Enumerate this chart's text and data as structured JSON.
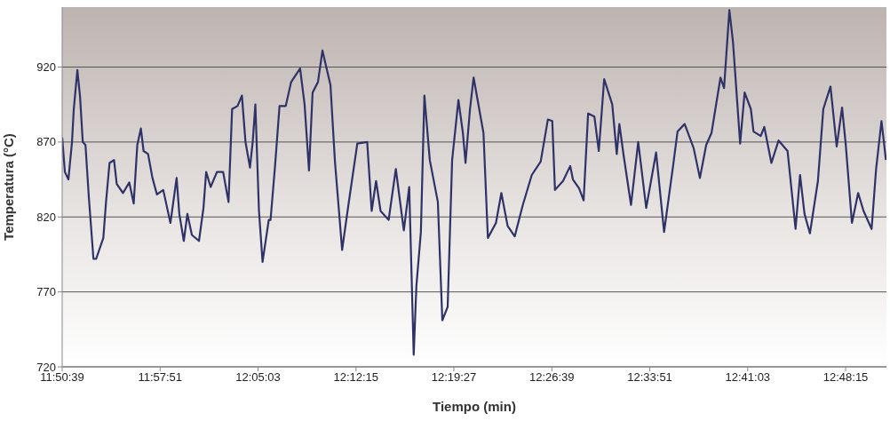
{
  "chart_data": {
    "type": "line",
    "xlabel": "Tiempo (min)",
    "ylabel": "Temperatura (°C)",
    "xlim": [
      11.844167,
      12.854167
    ],
    "xticks": [
      {
        "value": 11.844167,
        "label": "11:50:39"
      },
      {
        "value": 11.964167,
        "label": "11:57:51"
      },
      {
        "value": 12.084167,
        "label": "12:05:03"
      },
      {
        "value": 12.204167,
        "label": "12:12:15"
      },
      {
        "value": 12.324167,
        "label": "12:19:27"
      },
      {
        "value": 12.444167,
        "label": "12:26:39"
      },
      {
        "value": 12.564167,
        "label": "12:33:51"
      },
      {
        "value": 12.684167,
        "label": "12:41:03"
      },
      {
        "value": 12.804167,
        "label": "12:48:15"
      }
    ],
    "ylim": [
      720,
      960
    ],
    "yticks": [
      720,
      770,
      820,
      870,
      920
    ],
    "grid": "y",
    "legend": false,
    "marker": "none",
    "line_style": "solid",
    "x": [
      11.8442,
      11.8475,
      11.8518,
      11.8562,
      11.8584,
      11.8628,
      11.8661,
      11.8694,
      11.8727,
      11.877,
      11.8825,
      11.8858,
      11.8946,
      11.8979,
      11.9022,
      11.9077,
      11.911,
      11.9187,
      11.9264,
      11.9318,
      11.9362,
      11.9406,
      11.9439,
      11.9494,
      11.9548,
      11.9603,
      11.968,
      11.9768,
      11.9844,
      11.9877,
      11.9932,
      11.9976,
      12.0031,
      12.0118,
      12.0173,
      12.0206,
      12.0261,
      12.0338,
      12.0414,
      12.048,
      12.0524,
      12.059,
      12.0644,
      12.0688,
      12.0743,
      12.0776,
      12.0809,
      12.0853,
      12.0897,
      12.0973,
      12.0995,
      12.105,
      12.1105,
      12.1181,
      12.1247,
      12.1357,
      12.1412,
      12.1466,
      12.151,
      12.1576,
      12.1631,
      12.1729,
      12.1784,
      12.1872,
      12.1949,
      12.2058,
      12.2179,
      12.2234,
      12.2288,
      12.2343,
      12.2442,
      12.253,
      12.2628,
      12.2694,
      12.2749,
      12.2782,
      12.2837,
      12.288,
      12.2946,
      12.3045,
      12.31,
      12.3165,
      12.322,
      12.3297,
      12.3352,
      12.3384,
      12.3439,
      12.3483,
      12.3516,
      12.3604,
      12.3658,
      12.3757,
      12.3823,
      12.39,
      12.3987,
      12.4086,
      12.4196,
      12.4305,
      12.4393,
      12.4447,
      12.448,
      12.4579,
      12.4667,
      12.47,
      12.4776,
      12.4831,
      12.4886,
      12.4963,
      12.5017,
      12.5083,
      12.5182,
      12.5237,
      12.5269,
      12.5324,
      12.5412,
      12.55,
      12.5598,
      12.5719,
      12.5817,
      12.5927,
      12.5982,
      12.6069,
      12.6179,
      12.6256,
      12.6333,
      12.6398,
      12.6508,
      12.6552,
      12.6617,
      12.6661,
      12.6749,
      12.6804,
      12.688,
      12.6913,
      12.7001,
      12.7045,
      12.7132,
      12.722,
      12.733,
      12.7428,
      12.7483,
      12.7538,
      12.7604,
      12.7702,
      12.7768,
      12.7856,
      12.7932,
      12.7998,
      12.8042,
      12.8119,
      12.8195,
      12.8261,
      12.836,
      12.8415,
      12.8481,
      12.8535
    ],
    "series": [
      {
        "color": "#2e3266",
        "values": [
          873,
          850,
          845,
          870,
          892,
          918,
          900,
          870,
          868,
          832,
          792,
          792,
          806,
          830,
          856,
          858,
          842,
          836,
          843,
          829,
          868,
          879,
          864,
          862,
          846,
          835,
          838,
          816,
          846,
          822,
          804,
          822,
          808,
          804,
          826,
          850,
          840,
          850,
          850,
          830,
          892,
          894,
          901,
          870,
          853,
          870,
          895,
          824,
          790,
          818,
          818,
          854,
          894,
          894,
          910,
          919,
          895,
          851,
          903,
          910,
          931,
          908,
          857,
          798,
          828,
          869,
          870,
          824,
          844,
          824,
          818,
          852,
          811,
          840,
          728,
          774,
          810,
          901,
          858,
          830,
          751,
          760,
          858,
          898,
          876,
          856,
          892,
          913,
          903,
          876,
          806,
          816,
          836,
          814,
          807,
          828,
          848,
          857,
          885,
          884,
          838,
          844,
          854,
          845,
          839,
          831,
          889,
          887,
          864,
          912,
          895,
          862,
          882,
          860,
          828,
          870,
          826,
          863,
          810,
          854,
          877,
          882,
          866,
          846,
          868,
          876,
          913,
          906,
          958,
          937,
          869,
          903,
          892,
          877,
          874,
          880,
          856,
          871,
          864,
          812,
          848,
          822,
          809,
          844,
          892,
          907,
          867,
          893,
          869,
          816,
          836,
          824,
          812,
          852,
          884,
          858
        ]
      }
    ]
  }
}
